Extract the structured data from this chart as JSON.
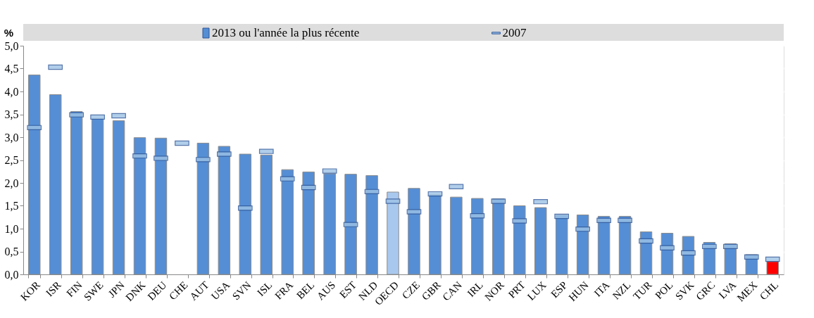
{
  "chart_data": {
    "type": "bar",
    "ylabel": "%",
    "categories": [
      "KOR",
      "ISR",
      "FIN",
      "SWE",
      "JPN",
      "DNK",
      "DEU",
      "CHE",
      "AUT",
      "USA",
      "SVN",
      "ISL",
      "FRA",
      "BEL",
      "AUS",
      "EST",
      "NLD",
      "OECD",
      "CZE",
      "GBR",
      "CAN",
      "IRL",
      "NOR",
      "PRT",
      "LUX",
      "ESP",
      "HUN",
      "ITA",
      "NZL",
      "TUR",
      "POL",
      "SVK",
      "GRC",
      "LVA",
      "MEX",
      "CHL"
    ],
    "series": [
      {
        "name": "2013 ou l'année la plus récente",
        "color": "#558ed5",
        "colors": [
          "#558ed5",
          "#558ed5",
          "#558ed5",
          "#558ed5",
          "#558ed5",
          "#558ed5",
          "#558ed5",
          "#558ed5",
          "#558ed5",
          "#558ed5",
          "#558ed5",
          "#558ed5",
          "#558ed5",
          "#558ed5",
          "#558ed5",
          "#558ed5",
          "#558ed5",
          "#a9c8ee",
          "#558ed5",
          "#558ed5",
          "#558ed5",
          "#558ed5",
          "#558ed5",
          "#558ed5",
          "#558ed5",
          "#558ed5",
          "#558ed5",
          "#558ed5",
          "#558ed5",
          "#558ed5",
          "#558ed5",
          "#558ed5",
          "#558ed5",
          "#558ed5",
          "#558ed5",
          "#ff0000"
        ],
        "values": [
          4.36,
          3.93,
          3.56,
          3.41,
          3.36,
          2.99,
          2.98,
          null,
          2.87,
          2.8,
          2.63,
          2.61,
          2.29,
          2.24,
          2.2,
          2.19,
          2.16,
          1.8,
          1.88,
          1.74,
          1.69,
          1.66,
          1.65,
          1.5,
          1.46,
          1.3,
          1.3,
          1.27,
          1.27,
          0.93,
          0.9,
          0.83,
          0.7,
          0.67,
          0.43,
          0.28
        ]
      },
      {
        "name": "2007",
        "type": "scatter",
        "color": "#9dc3e6",
        "values": [
          3.21,
          4.53,
          3.49,
          3.44,
          3.47,
          2.59,
          2.54,
          2.87,
          2.51,
          2.63,
          1.45,
          2.69,
          2.09,
          1.9,
          2.26,
          1.09,
          1.81,
          1.6,
          1.37,
          1.76,
          1.92,
          1.28,
          1.6,
          1.17,
          1.59,
          1.27,
          0.99,
          1.18,
          1.18,
          0.73,
          0.58,
          0.47,
          0.61,
          0.61,
          0.38,
          0.33
        ]
      }
    ],
    "ylim": [
      0,
      5
    ],
    "yticks": [
      {
        "value": 0,
        "label": "0,0"
      },
      {
        "value": 0.5,
        "label": "0,5"
      },
      {
        "value": 1,
        "label": "1,0"
      },
      {
        "value": 1.5,
        "label": "1,5"
      },
      {
        "value": 2,
        "label": "2,0"
      },
      {
        "value": 2.5,
        "label": "2,5"
      },
      {
        "value": 3,
        "label": "3,0"
      },
      {
        "value": 3.5,
        "label": "3,5"
      },
      {
        "value": 4,
        "label": "4,0"
      },
      {
        "value": 4.5,
        "label": "4,5"
      },
      {
        "value": 5,
        "label": "5,0"
      }
    ],
    "grid": true,
    "legend": "top"
  }
}
